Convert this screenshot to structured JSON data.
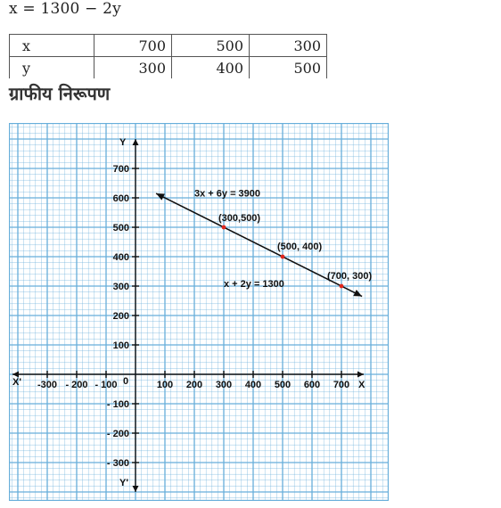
{
  "equation": "x = 1300 − 2y",
  "table": {
    "rows": [
      {
        "label": "x",
        "values": [
          "700",
          "500",
          "300"
        ]
      },
      {
        "label": "y",
        "values": [
          "300",
          "400",
          "500"
        ]
      }
    ]
  },
  "section_title": "ग्राफीय निरूपण",
  "graph": {
    "axis_labels": {
      "x_pos": "X",
      "x_neg": "X'",
      "y_pos": "Y",
      "y_neg": "Y'"
    },
    "origin_label": "0",
    "x_ticks": [
      {
        "value": -300,
        "label": "-300"
      },
      {
        "value": -200,
        "label": "- 200"
      },
      {
        "value": -100,
        "label": "- 100"
      },
      {
        "value": 100,
        "label": "100"
      },
      {
        "value": 200,
        "label": "200"
      },
      {
        "value": 300,
        "label": "300"
      },
      {
        "value": 400,
        "label": "400"
      },
      {
        "value": 500,
        "label": "500"
      },
      {
        "value": 600,
        "label": "600"
      },
      {
        "value": 700,
        "label": "700"
      }
    ],
    "y_ticks": [
      {
        "value": 700,
        "label": "700"
      },
      {
        "value": 600,
        "label": "600"
      },
      {
        "value": 500,
        "label": "500"
      },
      {
        "value": 400,
        "label": "400"
      },
      {
        "value": 300,
        "label": "300"
      },
      {
        "value": 200,
        "label": "200"
      },
      {
        "value": 100,
        "label": "100"
      },
      {
        "value": -100,
        "label": "- 100"
      },
      {
        "value": -200,
        "label": "- 200"
      },
      {
        "value": -300,
        "label": "- 300"
      }
    ],
    "points": [
      {
        "x": 300,
        "y": 500,
        "label": "(300,500)"
      },
      {
        "x": 500,
        "y": 400,
        "label": "(500, 400)"
      },
      {
        "x": 700,
        "y": 300,
        "label": "(700, 300)"
      }
    ],
    "line_labels": {
      "top": "3x + 6y = 3900",
      "bottom": "x + 2y = 1300"
    },
    "colors": {
      "grid": "#67aeda",
      "axis": "#111111",
      "point": "#e0281e"
    }
  }
}
